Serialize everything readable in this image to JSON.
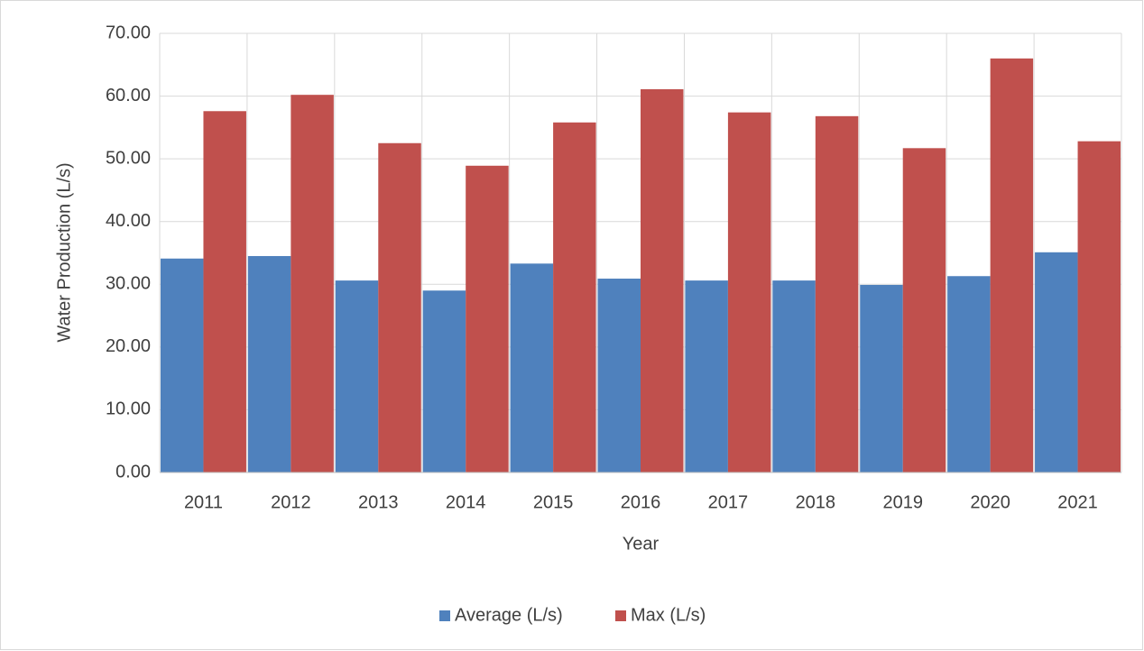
{
  "chart_data": {
    "type": "bar",
    "x_label": "Year",
    "y_label": "Water Production (L/s)",
    "categories": [
      "2011",
      "2012",
      "2013",
      "2014",
      "2015",
      "2016",
      "2017",
      "2018",
      "2019",
      "2020",
      "2021"
    ],
    "series": [
      {
        "name": "Average (L/s)",
        "color": "#4f81bd",
        "values": [
          34.1,
          34.5,
          30.6,
          29.0,
          33.3,
          30.9,
          30.6,
          30.6,
          29.9,
          31.3,
          35.1
        ]
      },
      {
        "name": "Max (L/s)",
        "color": "#c0504d",
        "values": [
          57.6,
          60.2,
          52.5,
          48.9,
          55.8,
          61.1,
          57.4,
          56.8,
          51.7,
          66.0,
          52.8
        ]
      }
    ],
    "ylim": [
      0,
      70
    ],
    "yticks": [
      {
        "value": 0,
        "label": "0.00"
      },
      {
        "value": 10,
        "label": "10.00"
      },
      {
        "value": 20,
        "label": "20.00"
      },
      {
        "value": 30,
        "label": "30.00"
      },
      {
        "value": 40,
        "label": "40.00"
      },
      {
        "value": 50,
        "label": "50.00"
      },
      {
        "value": 60,
        "label": "60.00"
      },
      {
        "value": 70,
        "label": "70.00"
      }
    ],
    "grid": true,
    "legend": "bottom"
  }
}
